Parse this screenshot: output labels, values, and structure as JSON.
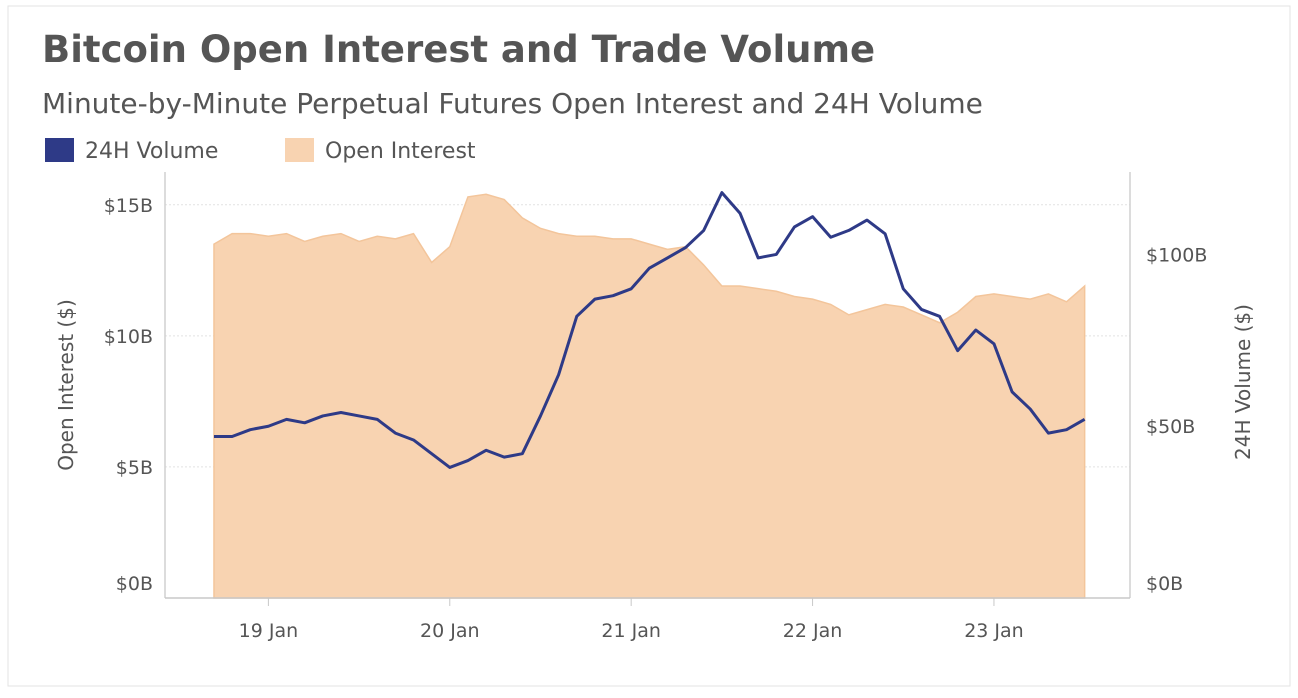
{
  "chart_data": {
    "type": "line",
    "title": "Bitcoin Open Interest and Trade Volume",
    "subtitle": "Minute-by-Minute Perpetual Futures Open Interest and 24H Volume",
    "ylabel": "Open Interest ($)",
    "y2label": "24H Volume ($)",
    "x": [
      18.7,
      18.8,
      18.9,
      19.0,
      19.1,
      19.2,
      19.3,
      19.4,
      19.5,
      19.6,
      19.7,
      19.8,
      19.9,
      20.0,
      20.1,
      20.2,
      20.3,
      20.4,
      20.5,
      20.6,
      20.7,
      20.8,
      20.9,
      21.0,
      21.1,
      21.2,
      21.3,
      21.4,
      21.5,
      21.6,
      21.7,
      21.8,
      21.9,
      22.0,
      22.1,
      22.2,
      22.3,
      22.4,
      22.5,
      22.6,
      22.7,
      22.8,
      22.9,
      23.0,
      23.1,
      23.2,
      23.3,
      23.4,
      23.5
    ],
    "series": [
      {
        "name": "24H Volume",
        "type": "line",
        "axis": "y2",
        "color": "#2e3a87",
        "values": [
          47,
          47,
          49,
          50,
          52,
          51,
          53,
          54,
          53,
          52,
          48,
          46,
          42,
          38,
          40,
          43,
          41,
          42,
          53,
          65,
          82,
          87,
          88,
          90,
          96,
          99,
          102,
          107,
          118,
          112,
          99,
          100,
          108,
          111,
          105,
          107,
          110,
          106,
          90,
          84,
          82,
          72,
          78,
          74,
          60,
          55,
          48,
          49,
          52
        ]
      },
      {
        "name": "Open Interest",
        "type": "area",
        "color": "#f8d3b1",
        "values": [
          13.5,
          13.9,
          13.9,
          13.8,
          13.9,
          13.6,
          13.8,
          13.9,
          13.6,
          13.8,
          13.7,
          13.9,
          12.8,
          13.4,
          15.3,
          15.4,
          15.2,
          14.5,
          14.1,
          13.9,
          13.8,
          13.8,
          13.7,
          13.7,
          13.5,
          13.3,
          13.4,
          12.7,
          11.9,
          11.9,
          11.8,
          11.7,
          11.5,
          11.4,
          11.2,
          10.8,
          11.0,
          11.2,
          11.1,
          10.8,
          10.5,
          10.9,
          11.5,
          11.6,
          11.5,
          11.4,
          11.6,
          11.3,
          11.9
        ]
      }
    ],
    "xlim": [
      18.43,
      23.75
    ],
    "xticks": [
      {
        "value": 19,
        "label": "19 Jan"
      },
      {
        "value": 20,
        "label": "20 Jan"
      },
      {
        "value": 21,
        "label": "21 Jan"
      },
      {
        "value": 22,
        "label": "22 Jan"
      },
      {
        "value": 23,
        "label": "23 Jan"
      }
    ],
    "ylim": [
      0,
      16.25
    ],
    "yticks": [
      {
        "value": 0,
        "label": "$0B"
      },
      {
        "value": 5,
        "label": "$5B"
      },
      {
        "value": 10,
        "label": "$10B"
      },
      {
        "value": 15,
        "label": "$15B"
      }
    ],
    "y2lim": [
      0,
      124
    ],
    "y2ticks": [
      {
        "value": 0,
        "label": "$0B"
      },
      {
        "value": 50,
        "label": "$50B"
      },
      {
        "value": 100,
        "label": "$100B"
      }
    ],
    "grid": true,
    "legend": "top-left"
  }
}
